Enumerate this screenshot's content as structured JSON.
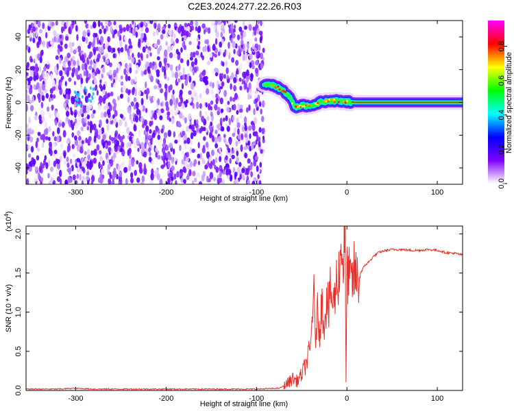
{
  "title": "C2E3.2024.277.22.26.R03",
  "chart_data": [
    {
      "type": "heatmap",
      "xlabel": "Height of straight line (km)",
      "ylabel": "Frequency (Hz)",
      "xlim": [
        -355,
        128
      ],
      "ylim": [
        -50,
        50
      ],
      "xticks": [
        -300,
        -200,
        -100,
        0,
        100
      ],
      "yticks": [
        -40,
        -20,
        0,
        20,
        40
      ],
      "colorbar": {
        "label": "Normalized spectral amplitude",
        "range": [
          0,
          0.95
        ],
        "ticks": [
          0.0,
          0.2,
          0.4,
          0.6,
          0.8
        ],
        "tick_labels": [
          "0.0",
          "0.2",
          "0.4",
          "0.6",
          "0.8"
        ],
        "colors": [
          "#ffffff",
          "#8000ff",
          "#0000ff",
          "#00ffff",
          "#00ff00",
          "#ffff00",
          "#ff0000",
          "#ff00ff"
        ]
      },
      "noise_region_x": [
        -355,
        -92
      ],
      "signal_track": [
        {
          "x": -92,
          "y": 11
        },
        {
          "x": -80,
          "y": 10
        },
        {
          "x": -72,
          "y": 8
        },
        {
          "x": -64,
          "y": 4
        },
        {
          "x": -57,
          "y": -3
        },
        {
          "x": -50,
          "y": -2
        },
        {
          "x": -40,
          "y": -2
        },
        {
          "x": -30,
          "y": 0
        },
        {
          "x": -20,
          "y": 1
        },
        {
          "x": -10,
          "y": 1
        },
        {
          "x": 0,
          "y": 0.5
        },
        {
          "x": 10,
          "y": 0
        },
        {
          "x": 60,
          "y": 0
        },
        {
          "x": 128,
          "y": 0
        }
      ]
    },
    {
      "type": "line",
      "xlabel": "Height of straight line (km)",
      "ylabel": "SNR (10 * v/v)",
      "yscale_note": "(x10",
      "yscale_exp": "4",
      "scale_factor": 10000,
      "xlim": [
        -355,
        128
      ],
      "ylim": [
        0,
        2.1
      ],
      "xticks": [
        -300,
        -200,
        -100,
        0,
        100
      ],
      "yticks": [
        0.0,
        0.5,
        1.0,
        1.5,
        2.0
      ],
      "ytick_labels": [
        "0.0",
        "0.5",
        "1.0",
        "1.5",
        "2.0"
      ],
      "color": "#e8302a",
      "series": [
        {
          "values_x": [
            -355,
            -320,
            -300,
            -280,
            -250,
            -200,
            -150,
            -100,
            -75,
            -70,
            -65,
            -60,
            -55,
            -50,
            -45,
            -40,
            -37,
            -35,
            -33,
            -30,
            -28,
            -25,
            -22,
            -20,
            -18,
            -15,
            -12,
            -10,
            -8,
            -6,
            -4,
            -2,
            -1,
            0,
            2,
            5,
            8,
            12,
            15,
            20,
            25,
            30,
            35,
            40,
            50,
            60,
            70,
            80,
            90,
            100,
            110,
            120,
            128
          ],
          "values_y": [
            0.01,
            0.01,
            0.02,
            0.01,
            0.01,
            0.01,
            0.01,
            0.01,
            0.02,
            0.05,
            0.1,
            0.15,
            0.12,
            0.2,
            0.35,
            0.55,
            1.35,
            0.6,
            1.0,
            0.8,
            1.1,
            0.9,
            1.2,
            1.0,
            1.3,
            1.05,
            1.35,
            1.45,
            1.55,
            1.9,
            1.6,
            2.05,
            0.05,
            1.55,
            1.45,
            1.35,
            1.5,
            1.4,
            1.5,
            1.6,
            1.65,
            1.72,
            1.76,
            1.78,
            1.8,
            1.8,
            1.79,
            1.79,
            1.8,
            1.79,
            1.76,
            1.75,
            1.73
          ]
        }
      ]
    }
  ]
}
